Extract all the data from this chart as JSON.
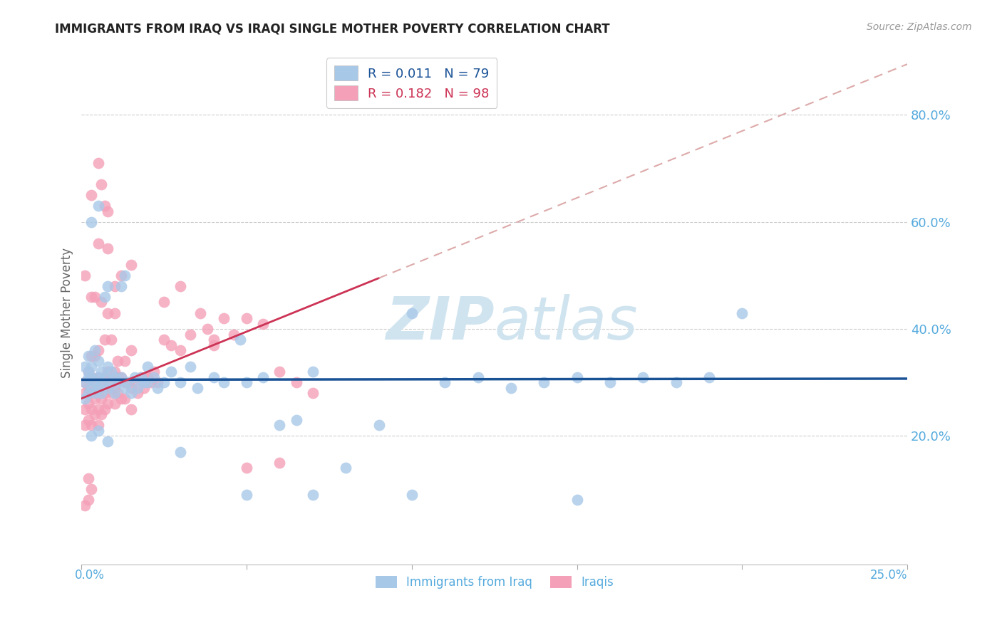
{
  "title": "IMMIGRANTS FROM IRAQ VS IRAQI SINGLE MOTHER POVERTY CORRELATION CHART",
  "source": "Source: ZipAtlas.com",
  "ylabel": "Single Mother Poverty",
  "blue_color": "#a8c8e8",
  "pink_color": "#f4a0b8",
  "trend_blue_color": "#1a5296",
  "trend_pink_solid_color": "#cc3355",
  "trend_pink_dashed_color": "#ddaaaa",
  "watermark_color": "#d0e4f0",
  "background_color": "#ffffff",
  "grid_color": "#cccccc",
  "axis_label_color": "#55aadd",
  "title_color": "#222222",
  "xlim": [
    0.0,
    0.25
  ],
  "ylim": [
    -0.04,
    0.9
  ],
  "ytick_vals": [
    0.2,
    0.4,
    0.6,
    0.8
  ],
  "ytick_labels": [
    "20.0%",
    "40.0%",
    "60.0%",
    "80.0%"
  ],
  "xtick_positions": [
    0.0,
    0.05,
    0.1,
    0.15,
    0.2,
    0.25
  ],
  "blue_x": [
    0.001,
    0.001,
    0.001,
    0.002,
    0.002,
    0.002,
    0.002,
    0.003,
    0.003,
    0.003,
    0.004,
    0.004,
    0.004,
    0.005,
    0.005,
    0.005,
    0.006,
    0.006,
    0.006,
    0.007,
    0.007,
    0.008,
    0.008,
    0.009,
    0.009,
    0.01,
    0.01,
    0.011,
    0.012,
    0.013,
    0.013,
    0.014,
    0.015,
    0.016,
    0.017,
    0.018,
    0.019,
    0.02,
    0.022,
    0.023,
    0.025,
    0.027,
    0.03,
    0.033,
    0.035,
    0.04,
    0.043,
    0.048,
    0.05,
    0.055,
    0.06,
    0.065,
    0.07,
    0.08,
    0.09,
    0.1,
    0.11,
    0.12,
    0.13,
    0.14,
    0.15,
    0.16,
    0.17,
    0.18,
    0.19,
    0.2,
    0.003,
    0.005,
    0.008,
    0.012,
    0.02,
    0.03,
    0.05,
    0.07,
    0.1,
    0.15,
    0.003,
    0.005,
    0.008
  ],
  "blue_y": [
    0.3,
    0.33,
    0.27,
    0.31,
    0.35,
    0.28,
    0.32,
    0.29,
    0.31,
    0.33,
    0.3,
    0.28,
    0.36,
    0.31,
    0.29,
    0.34,
    0.3,
    0.32,
    0.28,
    0.31,
    0.46,
    0.29,
    0.33,
    0.3,
    0.32,
    0.31,
    0.28,
    0.3,
    0.31,
    0.29,
    0.5,
    0.3,
    0.28,
    0.31,
    0.29,
    0.31,
    0.3,
    0.33,
    0.31,
    0.29,
    0.3,
    0.32,
    0.3,
    0.33,
    0.29,
    0.31,
    0.3,
    0.38,
    0.3,
    0.31,
    0.22,
    0.23,
    0.32,
    0.14,
    0.22,
    0.43,
    0.3,
    0.31,
    0.29,
    0.3,
    0.31,
    0.3,
    0.31,
    0.3,
    0.31,
    0.43,
    0.6,
    0.63,
    0.48,
    0.48,
    0.3,
    0.17,
    0.09,
    0.09,
    0.09,
    0.08,
    0.2,
    0.21,
    0.19
  ],
  "pink_x": [
    0.001,
    0.001,
    0.001,
    0.001,
    0.002,
    0.002,
    0.002,
    0.002,
    0.003,
    0.003,
    0.003,
    0.003,
    0.004,
    0.004,
    0.004,
    0.005,
    0.005,
    0.005,
    0.005,
    0.006,
    0.006,
    0.006,
    0.007,
    0.007,
    0.007,
    0.008,
    0.008,
    0.008,
    0.009,
    0.009,
    0.01,
    0.01,
    0.01,
    0.011,
    0.011,
    0.012,
    0.012,
    0.013,
    0.013,
    0.014,
    0.015,
    0.015,
    0.016,
    0.017,
    0.018,
    0.019,
    0.02,
    0.021,
    0.022,
    0.023,
    0.025,
    0.027,
    0.03,
    0.033,
    0.036,
    0.038,
    0.04,
    0.043,
    0.046,
    0.05,
    0.055,
    0.06,
    0.065,
    0.07,
    0.003,
    0.005,
    0.008,
    0.01,
    0.012,
    0.015,
    0.005,
    0.006,
    0.007,
    0.008,
    0.004,
    0.003,
    0.006,
    0.008,
    0.01,
    0.003,
    0.004,
    0.005,
    0.007,
    0.009,
    0.011,
    0.013,
    0.015,
    0.02,
    0.025,
    0.03,
    0.04,
    0.05,
    0.06,
    0.001,
    0.002,
    0.001,
    0.002,
    0.003
  ],
  "pink_y": [
    0.3,
    0.28,
    0.25,
    0.22,
    0.32,
    0.29,
    0.26,
    0.23,
    0.31,
    0.28,
    0.25,
    0.22,
    0.3,
    0.27,
    0.24,
    0.31,
    0.28,
    0.25,
    0.22,
    0.3,
    0.27,
    0.24,
    0.31,
    0.28,
    0.25,
    0.32,
    0.29,
    0.26,
    0.31,
    0.28,
    0.32,
    0.29,
    0.26,
    0.31,
    0.28,
    0.31,
    0.27,
    0.3,
    0.27,
    0.3,
    0.29,
    0.25,
    0.3,
    0.28,
    0.31,
    0.29,
    0.31,
    0.3,
    0.32,
    0.3,
    0.38,
    0.37,
    0.36,
    0.39,
    0.43,
    0.4,
    0.38,
    0.42,
    0.39,
    0.42,
    0.41,
    0.32,
    0.3,
    0.28,
    0.65,
    0.56,
    0.55,
    0.48,
    0.5,
    0.52,
    0.71,
    0.67,
    0.63,
    0.62,
    0.46,
    0.46,
    0.45,
    0.43,
    0.43,
    0.35,
    0.35,
    0.36,
    0.38,
    0.38,
    0.34,
    0.34,
    0.36,
    0.31,
    0.45,
    0.48,
    0.37,
    0.14,
    0.15,
    0.5,
    0.12,
    0.07,
    0.08,
    0.1
  ]
}
